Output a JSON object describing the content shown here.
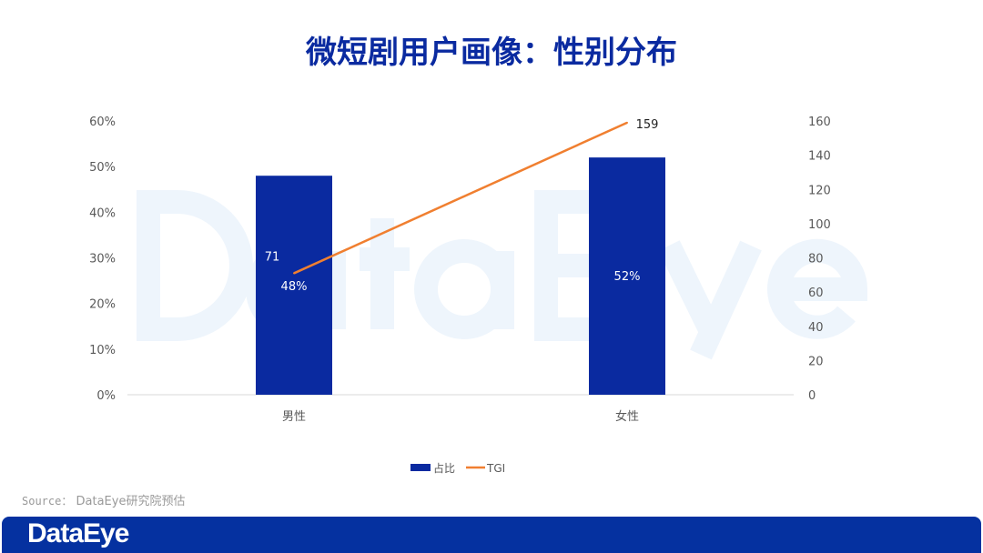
{
  "title": "微短剧用户画像：性别分布",
  "watermark": "DataEye",
  "source": {
    "label": "Source：",
    "text": "DataEye研究院预估"
  },
  "footer": {
    "logo": "DataEye"
  },
  "colors": {
    "bar": "#0a2aa0",
    "line": "#f07f30",
    "title": "#0a2aa0",
    "footer": "#0531a0"
  },
  "chart_data": {
    "type": "bar+line",
    "title": "微短剧用户画像：性别分布",
    "categories": [
      "男性",
      "女性"
    ],
    "series": [
      {
        "name": "占比",
        "type": "bar",
        "axis": "left",
        "values": [
          48,
          52
        ],
        "labels": [
          "48%",
          "52%"
        ]
      },
      {
        "name": "TGI",
        "type": "line",
        "axis": "right",
        "values": [
          71,
          159
        ],
        "labels": [
          "71",
          "159"
        ]
      }
    ],
    "y_left": {
      "range": [
        0,
        60
      ],
      "ticks": [
        "0%",
        "10%",
        "20%",
        "30%",
        "40%",
        "50%",
        "60%"
      ]
    },
    "y_right": {
      "range": [
        0,
        160
      ],
      "ticks": [
        "0",
        "20",
        "40",
        "60",
        "80",
        "100",
        "120",
        "140",
        "160"
      ]
    },
    "grid": false,
    "legend": "bottom"
  }
}
